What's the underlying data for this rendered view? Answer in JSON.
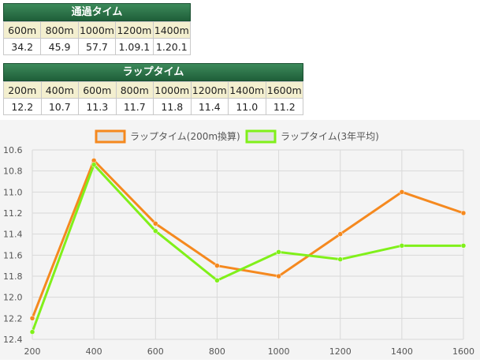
{
  "passing_table": {
    "title": "通過タイム",
    "headers": [
      "600m",
      "800m",
      "1000m",
      "1200m",
      "1400m"
    ],
    "values": [
      "34.2",
      "45.9",
      "57.7",
      "1.09.1",
      "1.20.1"
    ]
  },
  "lap_table": {
    "title": "ラップタイム",
    "headers": [
      "200m",
      "400m",
      "600m",
      "800m",
      "1000m",
      "1200m",
      "1400m",
      "1600m"
    ],
    "values": [
      "12.2",
      "10.7",
      "11.3",
      "11.7",
      "11.8",
      "11.4",
      "11.0",
      "11.2"
    ]
  },
  "chart_data": {
    "type": "line",
    "x": [
      200,
      400,
      600,
      800,
      1000,
      1200,
      1400,
      1600
    ],
    "series": [
      {
        "name": "ラップタイム(200m換算)",
        "color": "#f5891f",
        "values": [
          12.2,
          10.7,
          11.3,
          11.7,
          11.8,
          11.4,
          11.0,
          11.2
        ]
      },
      {
        "name": "ラップタイム(3年平均)",
        "color": "#80f01a",
        "values": [
          12.33,
          10.74,
          11.37,
          11.84,
          11.57,
          11.64,
          11.51,
          11.51
        ]
      }
    ],
    "ylim": [
      10.6,
      12.4
    ],
    "y_reversed": true,
    "yticks": [
      "10.6",
      "10.8",
      "11.0",
      "11.2",
      "11.4",
      "11.6",
      "11.8",
      "12.0",
      "12.2",
      "12.4"
    ],
    "xticks": [
      "200",
      "400",
      "600",
      "800",
      "1000",
      "1200",
      "1400",
      "1600"
    ],
    "grid": true,
    "legend_position": "top-center"
  }
}
